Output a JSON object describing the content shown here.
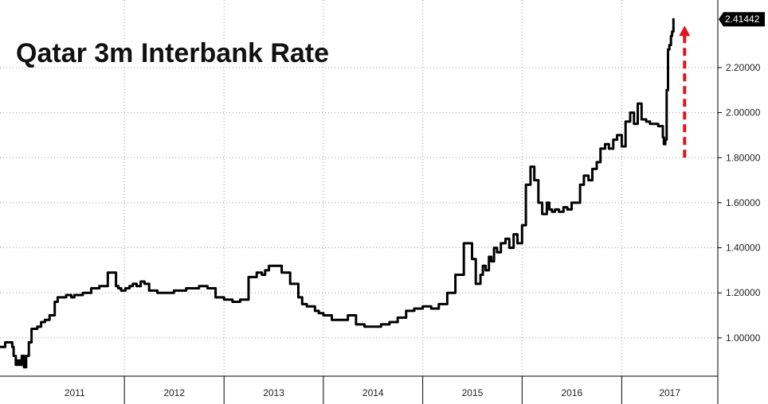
{
  "chart_data": {
    "type": "line",
    "title": "Qatar 3m Interbank Rate",
    "xlabel": "",
    "ylabel": "",
    "x_tick_labels": [
      "2011",
      "2012",
      "2013",
      "2014",
      "2015",
      "2016",
      "2017"
    ],
    "y_tick_labels": [
      "1.00000",
      "1.20000",
      "1.40000",
      "1.60000",
      "1.80000",
      "2.00000",
      "2.20000"
    ],
    "y_ticks": [
      1.0,
      1.2,
      1.4,
      1.6,
      1.8,
      2.0,
      2.2
    ],
    "ylim": [
      0.83,
      2.5
    ],
    "xlim": [
      "2010-10-01",
      "2017-12-20"
    ],
    "grid": true,
    "last_value_label": "2.41442",
    "annotation": "red dashed upward arrow beside the final spike",
    "colors": {
      "line": "#000000",
      "arrow": "#e0141c",
      "label_bg": "#000000",
      "label_text": "#ffffff",
      "grid": "#999999"
    },
    "series": [
      {
        "x": [
          "2010-10-01",
          "2010-10-20",
          "2010-11-05",
          "2010-11-15",
          "2010-11-20",
          "2010-11-28",
          "2010-12-05",
          "2010-12-12",
          "2010-12-20",
          "2010-12-28",
          "2011-01-05",
          "2011-01-15",
          "2011-01-25",
          "2011-02-05",
          "2011-02-15",
          "2011-03-01",
          "2011-03-15",
          "2011-04-01",
          "2011-04-20",
          "2011-05-01",
          "2011-05-15",
          "2011-06-01",
          "2011-06-20",
          "2011-07-01",
          "2011-08-01",
          "2011-09-01",
          "2011-10-01",
          "2011-11-01",
          "2011-12-01",
          "2011-12-10",
          "2011-12-20",
          "2012-01-05",
          "2012-01-20",
          "2012-02-01",
          "2012-02-15",
          "2012-03-01",
          "2012-03-15",
          "2012-04-01",
          "2012-05-01",
          "2012-06-01",
          "2012-07-01",
          "2012-08-01",
          "2012-08-15",
          "2012-09-01",
          "2012-10-01",
          "2012-11-01",
          "2012-12-01",
          "2013-01-01",
          "2013-02-01",
          "2013-03-01",
          "2013-04-01",
          "2013-05-01",
          "2013-05-20",
          "2013-06-01",
          "2013-06-15",
          "2013-07-01",
          "2013-08-01",
          "2013-09-01",
          "2013-10-01",
          "2013-10-15",
          "2013-11-01",
          "2013-11-15",
          "2013-12-01",
          "2013-12-15",
          "2014-01-01",
          "2014-02-01",
          "2014-03-01",
          "2014-04-01",
          "2014-05-01",
          "2014-06-01",
          "2014-07-01",
          "2014-08-01",
          "2014-09-01",
          "2014-10-01",
          "2014-11-01",
          "2014-12-01",
          "2015-01-01",
          "2015-02-01",
          "2015-03-01",
          "2015-04-01",
          "2015-05-01",
          "2015-06-01",
          "2015-07-01",
          "2015-07-15",
          "2015-08-01",
          "2015-08-10",
          "2015-08-20",
          "2015-09-01",
          "2015-09-10",
          "2015-09-20",
          "2015-10-01",
          "2015-10-15",
          "2015-11-01",
          "2015-11-15",
          "2015-12-01",
          "2015-12-15",
          "2016-01-01",
          "2016-01-15",
          "2016-02-01",
          "2016-02-15",
          "2016-03-01",
          "2016-03-15",
          "2016-04-01",
          "2016-04-10",
          "2016-04-20",
          "2016-05-01",
          "2016-05-15",
          "2016-06-01",
          "2016-06-15",
          "2016-07-01",
          "2016-08-01",
          "2016-08-15",
          "2016-09-01",
          "2016-09-15",
          "2016-10-01",
          "2016-10-15",
          "2016-11-01",
          "2016-11-15",
          "2016-12-01",
          "2016-12-15",
          "2017-01-01",
          "2017-01-15",
          "2017-02-01",
          "2017-02-15",
          "2017-03-01",
          "2017-03-15",
          "2017-04-01",
          "2017-04-15",
          "2017-05-01",
          "2017-05-15",
          "2017-06-01",
          "2017-06-05",
          "2017-06-10",
          "2017-06-15",
          "2017-06-20",
          "2017-06-25",
          "2017-07-01",
          "2017-07-05",
          "2017-07-10"
        ],
        "values": [
          0.96,
          0.98,
          0.98,
          0.96,
          0.92,
          0.88,
          0.9,
          0.88,
          0.92,
          0.87,
          0.92,
          0.98,
          1.04,
          1.04,
          1.05,
          1.07,
          1.08,
          1.1,
          1.16,
          1.18,
          1.18,
          1.19,
          1.18,
          1.19,
          1.2,
          1.22,
          1.23,
          1.29,
          1.23,
          1.22,
          1.21,
          1.22,
          1.23,
          1.24,
          1.23,
          1.25,
          1.24,
          1.21,
          1.2,
          1.2,
          1.21,
          1.21,
          1.22,
          1.22,
          1.23,
          1.22,
          1.18,
          1.17,
          1.16,
          1.17,
          1.27,
          1.29,
          1.28,
          1.3,
          1.32,
          1.32,
          1.29,
          1.24,
          1.18,
          1.15,
          1.14,
          1.14,
          1.12,
          1.11,
          1.1,
          1.08,
          1.08,
          1.1,
          1.06,
          1.05,
          1.05,
          1.06,
          1.07,
          1.09,
          1.12,
          1.13,
          1.14,
          1.13,
          1.15,
          1.2,
          1.28,
          1.42,
          1.35,
          1.24,
          1.28,
          1.32,
          1.3,
          1.36,
          1.34,
          1.4,
          1.38,
          1.42,
          1.44,
          1.4,
          1.46,
          1.42,
          1.5,
          1.68,
          1.76,
          1.7,
          1.6,
          1.55,
          1.6,
          1.57,
          1.56,
          1.57,
          1.56,
          1.58,
          1.57,
          1.6,
          1.68,
          1.72,
          1.7,
          1.75,
          1.78,
          1.84,
          1.86,
          1.84,
          1.88,
          1.9,
          1.85,
          1.96,
          2.0,
          1.95,
          2.04,
          1.97,
          1.96,
          1.95,
          1.95,
          1.94,
          1.89,
          1.86,
          1.88,
          2.1,
          2.28,
          2.3,
          2.34,
          2.36,
          2.41442
        ]
      }
    ]
  }
}
